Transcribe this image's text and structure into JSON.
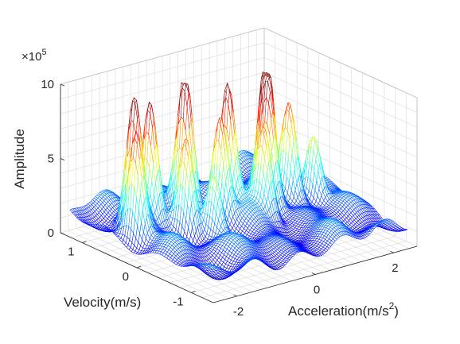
{
  "chart_data": {
    "type": "surface-mesh",
    "title": "",
    "zlabel": "Amplitude",
    "ylabel": "Velocity(m/s)",
    "xlabel_main": "Acceleration(m/s",
    "xlabel_sup": "2",
    "xlabel_close": ")",
    "z_exponent_base": "×10",
    "z_exponent_power": "5",
    "z_ticks": [
      "0",
      "5",
      "10"
    ],
    "z_tick_values": [
      0,
      5,
      10
    ],
    "y_ticks": [
      "1",
      "0",
      "-1"
    ],
    "y_tick_values": [
      1,
      0,
      -1
    ],
    "x_ticks": [
      "-2",
      "0",
      "2"
    ],
    "x_tick_values": [
      -2,
      0,
      2
    ],
    "xlim": [
      -2.6,
      2.6
    ],
    "ylim": [
      -1.4,
      1.4
    ],
    "zlim": [
      0,
      10
    ],
    "zscale": "×10^5",
    "colormap": "jet",
    "grid": true,
    "peaks": [
      {
        "x": -1.9,
        "y": 0.55,
        "z": 8.6
      },
      {
        "x": -1.5,
        "y": 0.55,
        "z": 8.1
      },
      {
        "x": -0.6,
        "y": 0.55,
        "z": 9.2
      },
      {
        "x": 0.2,
        "y": 0.35,
        "z": 8.7
      },
      {
        "x": 1.05,
        "y": 0.25,
        "z": 9.2
      },
      {
        "x": -2.2,
        "y": 0.3,
        "z": 7.2
      },
      {
        "x": -0.2,
        "y": 0.2,
        "z": 6.9
      },
      {
        "x": 0.9,
        "y": 0.1,
        "z": 6.8
      },
      {
        "x": 1.5,
        "y": 0.15,
        "z": 6.5
      },
      {
        "x": -1.2,
        "y": 0.1,
        "z": 6.3
      },
      {
        "x": 0.5,
        "y": -0.1,
        "z": 5.7
      },
      {
        "x": 1.9,
        "y": 0.0,
        "z": 4.6
      },
      {
        "x": -0.9,
        "y": -0.2,
        "z": 4.3
      }
    ]
  }
}
